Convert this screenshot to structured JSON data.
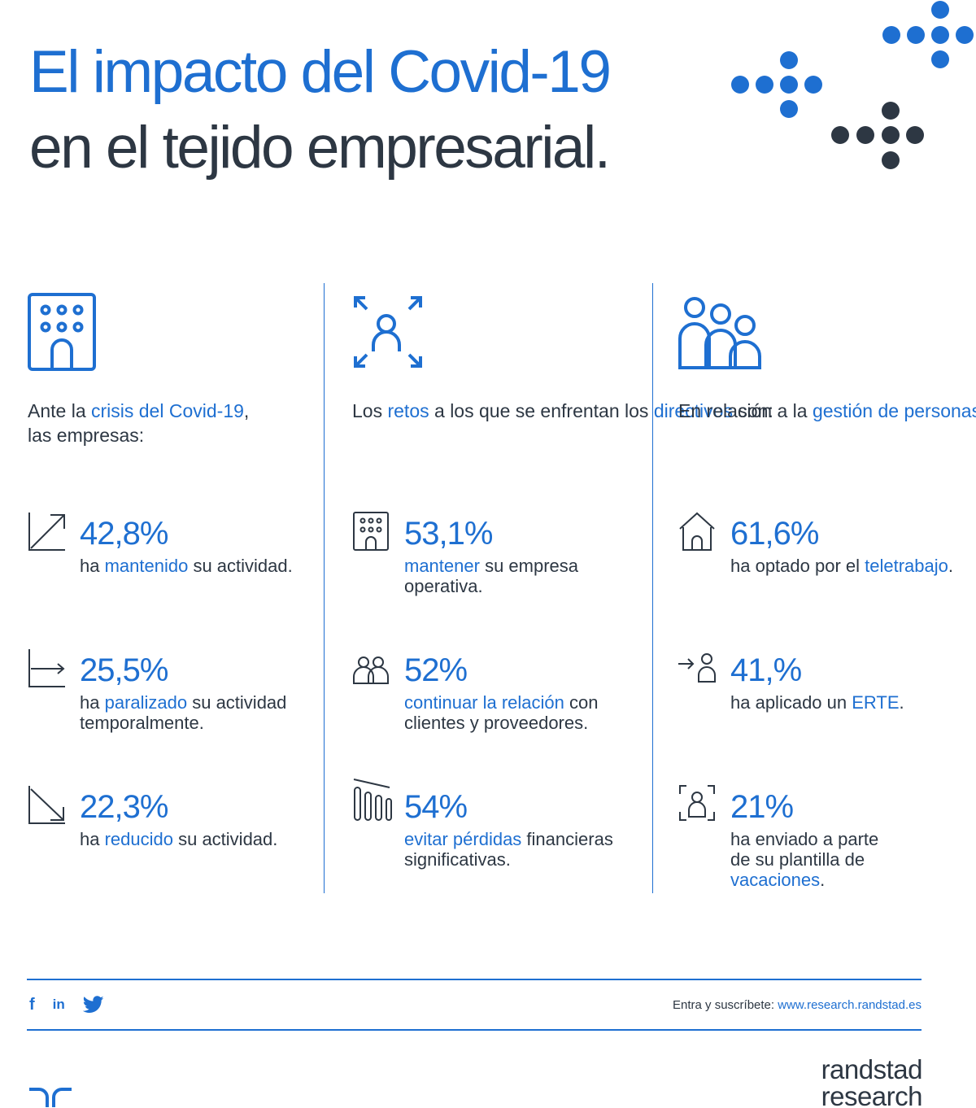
{
  "title": {
    "line1": "El impacto del Covid-19",
    "line2": "en el tejido empresarial."
  },
  "colors": {
    "accent": "#1e6fd1",
    "text": "#2d3743",
    "background": "#ffffff"
  },
  "columns": [
    {
      "icon": "building-icon",
      "intro": {
        "p1": "Ante la ",
        "h1": "crisis del Covid-19",
        "p2": ",",
        "p3": "las empresas:"
      },
      "stats": [
        {
          "icon": "trend-up-icon",
          "value": "42,8%",
          "pre": "ha ",
          "highlight": "mantenido",
          "post": " su actividad."
        },
        {
          "icon": "trend-flat-icon",
          "value": "25,5%",
          "pre": "ha ",
          "highlight": "paralizado",
          "post": " su actividad temporalmente."
        },
        {
          "icon": "trend-down-icon",
          "value": "22,3%",
          "pre": "ha ",
          "highlight": "reducido",
          "post": " su actividad."
        }
      ]
    },
    {
      "icon": "person-focus-icon",
      "intro": {
        "p1": "Los ",
        "h1": "retos",
        "p2": " a los que se enfrentan los ",
        "h2": "directivos",
        "p3": " son:"
      },
      "stats": [
        {
          "icon": "building-icon",
          "value": "53,1%",
          "pre": "",
          "highlight": "mantener",
          "post": " su empresa operativa."
        },
        {
          "icon": "people-icon",
          "value": "52%",
          "pre": "",
          "highlight": "continuar la relación",
          "post": " con clientes y proveedores."
        },
        {
          "icon": "bar-decline-icon",
          "value": "54%",
          "pre": "",
          "highlight": "evitar pérdidas",
          "post": " financieras significativas."
        }
      ]
    },
    {
      "icon": "group-icon",
      "intro": {
        "p1": "En relación a la ",
        "h1": "gestión de personas",
        "p2": ":"
      },
      "stats": [
        {
          "icon": "home-icon",
          "value": "61,6%",
          "pre": "ha optado por el ",
          "highlight": "teletrabajo",
          "post": "."
        },
        {
          "icon": "arrow-person-icon",
          "value": "41,%",
          "pre": "ha aplicado un ",
          "highlight": "ERTE",
          "post": "."
        },
        {
          "icon": "person-frame-icon",
          "value": "21%",
          "pre": "ha enviado a parte de su plantilla de ",
          "highlight": "vacaciones",
          "post": "."
        }
      ]
    }
  ],
  "social": {
    "facebook": "f",
    "linkedin": "in",
    "twitter": "twitter"
  },
  "footer": {
    "label": "Entra y suscríbete: ",
    "url": "www.research.randstad.es"
  },
  "brand": {
    "line1": "randstad",
    "line2": "research"
  }
}
